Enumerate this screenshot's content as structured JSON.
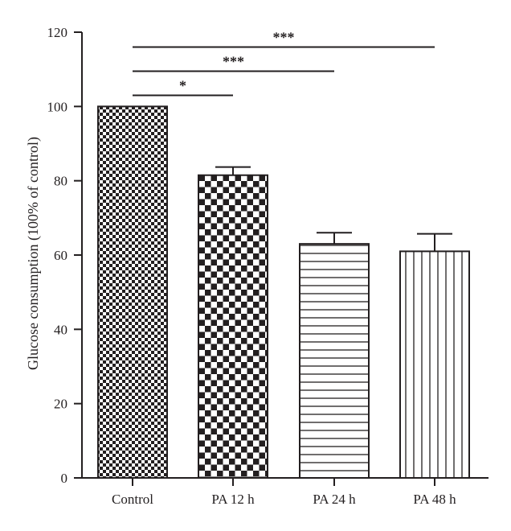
{
  "chart_data": {
    "type": "bar",
    "categories": [
      "Control",
      "PA 12 h",
      "PA 24 h",
      "PA 48 h"
    ],
    "values": [
      100,
      81.5,
      63,
      61
    ],
    "error_upper": [
      100,
      83.7,
      66,
      65.7
    ],
    "patterns": [
      "fine-checker",
      "coarse-checker",
      "horizontal-lines",
      "vertical-lines"
    ],
    "xlabel": "",
    "ylabel": "Glucose consumption (100% of control)",
    "ylim": [
      0,
      120
    ],
    "yticks": [
      0,
      20,
      40,
      60,
      80,
      100,
      120
    ],
    "significance": [
      {
        "from": "Control",
        "to": "PA 12 h",
        "label": "*",
        "y": 103
      },
      {
        "from": "Control",
        "to": "PA 24 h",
        "label": "***",
        "y": 109.5
      },
      {
        "from": "Control",
        "to": "PA 48 h",
        "label": "***",
        "y": 116
      }
    ],
    "grid": false,
    "colors": {
      "ink": "#231f20",
      "background": "#ffffff"
    }
  }
}
